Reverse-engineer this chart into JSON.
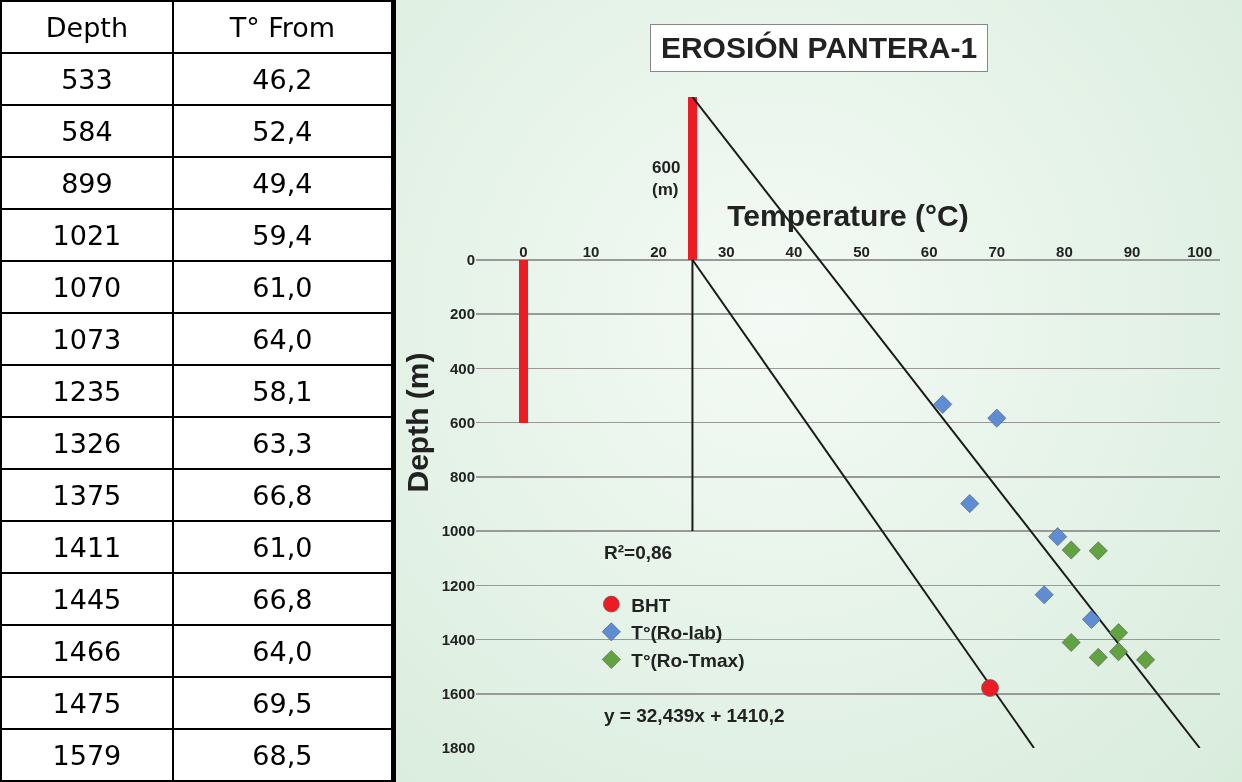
{
  "chart_data": [
    {
      "type": "other",
      "annotations": [
        "Depth",
        "T° From",
        "533",
        "46,2",
        "584",
        "52,4",
        "899",
        "49,4",
        "1021",
        "59,4",
        "1070",
        "61,0",
        "1073",
        "64,0",
        "1235",
        "58,1",
        "1326",
        "63,3",
        "1375",
        "66,8",
        "1411",
        "61,0",
        "1445",
        "66,8",
        "1466",
        "64,0",
        "1475",
        "69,5",
        "1579",
        "68,5"
      ]
    },
    {
      "type": "scatter",
      "title": "EROSIÓN PANTERA-1",
      "xlabel": "Temperature (°C)",
      "ylabel": "Depth (m)",
      "xlim": [
        -7,
        103
      ],
      "xticks": [
        0,
        10,
        20,
        30,
        40,
        50,
        60,
        70,
        80,
        90,
        100
      ],
      "ylim": [
        1800,
        -600
      ],
      "yticks": [
        0,
        200,
        400,
        600,
        800,
        1000,
        1200,
        1400,
        1600,
        1800
      ],
      "grid": "y",
      "legend": "bottom left",
      "annotations": [
        "R²=0,86",
        "y = 32,439x + 1410,2",
        {
          "text": "600\n(m)",
          "x": 25,
          "y": -300
        }
      ],
      "series": [
        {
          "type": "bar",
          "color": "#ed1c24",
          "x": [
            0
          ],
          "base": [
            0
          ],
          "values": [
            600
          ]
        },
        {
          "type": "bar",
          "color": "#ed1c24",
          "x": [
            25
          ],
          "base": [
            -600
          ],
          "values": [
            600
          ]
        },
        {
          "type": "line",
          "color": "#1a1a1a",
          "marker": "none",
          "x": [
            25,
            25
          ],
          "values": [
            0,
            1000
          ]
        },
        {
          "type": "line",
          "color": "#1a1a1a",
          "marker": "none",
          "x": [
            25,
            75.5
          ],
          "values": [
            0,
            1800
          ]
        },
        {
          "type": "line",
          "color": "#1a1a1a",
          "marker": "none",
          "x": [
            25,
            100
          ],
          "values": [
            -600,
            1800
          ]
        },
        {
          "type": "scatter",
          "name": "BHT",
          "color": "#ed1c24",
          "marker": "circle",
          "x": [
            69
          ],
          "values": [
            1579
          ]
        },
        {
          "type": "scatter",
          "name": "T°(Ro-lab)",
          "color": "#5f8dd3",
          "marker": "diamond",
          "x": [
            62,
            70,
            66,
            79,
            77,
            84
          ],
          "values": [
            533,
            584,
            899,
            1021,
            1235,
            1326
          ]
        },
        {
          "type": "scatter",
          "name": "T°(Ro-Tmax)",
          "color": "#62a341",
          "marker": "diamond",
          "x": [
            81,
            85,
            88,
            81,
            88,
            85,
            92
          ],
          "values": [
            1070,
            1073,
            1375,
            1411,
            1445,
            1466,
            1475
          ]
        }
      ]
    }
  ]
}
